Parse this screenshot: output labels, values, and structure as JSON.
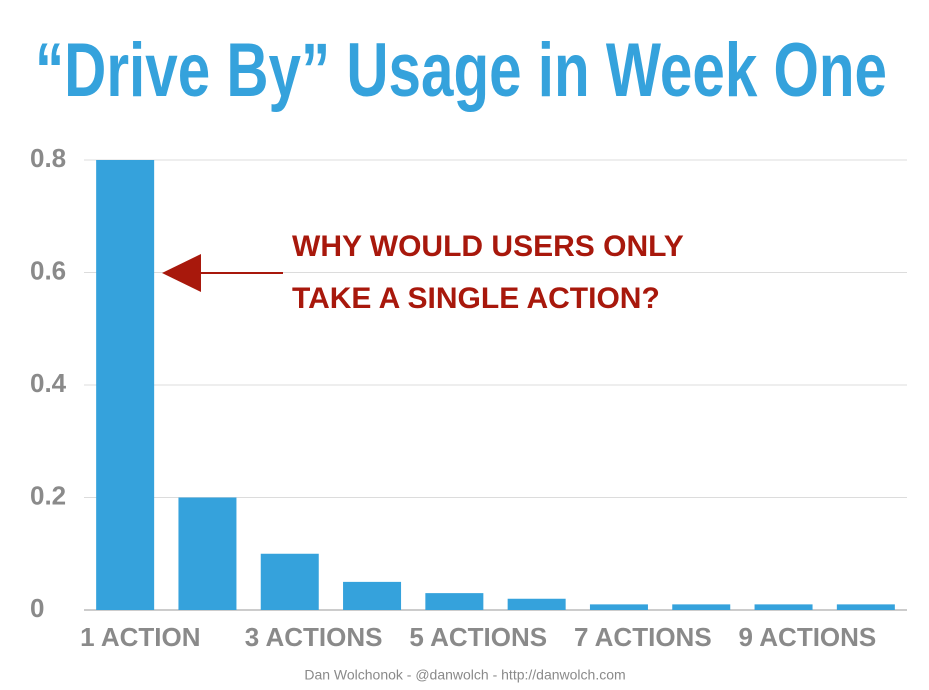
{
  "chart_data": {
    "type": "bar",
    "title": "“Drive By” Usage in Week One",
    "categories": [
      "1 ACTION",
      null,
      "3 ACTIONS",
      null,
      "5 ACTIONS",
      null,
      "7 ACTIONS",
      null,
      "9 ACTIONS",
      null
    ],
    "values": [
      0.8,
      0.2,
      0.1,
      0.05,
      0.03,
      0.02,
      0.01,
      0.01,
      0.01,
      0.01
    ],
    "color": "#35a2dc",
    "ylim": [
      0,
      0.8
    ],
    "yticks": [
      0,
      0.2,
      0.4,
      0.6,
      0.8
    ],
    "grid": true,
    "annotation": [
      "WHY WOULD USERS ONLY",
      "TAKE A SINGLE ACTION?"
    ],
    "footer": "Dan Wolchonok - @danwolch - http://danwolch.com"
  }
}
